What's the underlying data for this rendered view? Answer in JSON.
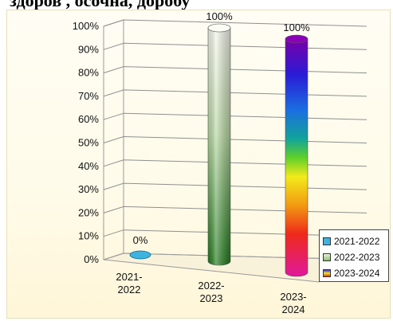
{
  "header": {
    "title": "здоров  , осочна, доробу"
  },
  "chart_data": {
    "type": "bar",
    "style": "3d-cylinder",
    "categories": [
      "2021-2022",
      "2022-2023",
      "2023-2024"
    ],
    "category_labels": [
      [
        "2021-",
        "2022"
      ],
      [
        "2022-",
        "2023"
      ],
      [
        "2023-",
        "2024"
      ]
    ],
    "values": [
      0,
      100,
      100
    ],
    "data_labels": [
      "0%",
      "100%",
      "100%"
    ],
    "ylim": [
      0,
      100
    ],
    "yticks": [
      "0%",
      "10%",
      "20%",
      "30%",
      "40%",
      "50%",
      "60%",
      "70%",
      "80%",
      "90%",
      "100%"
    ],
    "grid": true,
    "legend_position": "right",
    "legend": [
      "2021-2022",
      "2022-2023",
      "2023-2024"
    ],
    "colors": {
      "series1": "#2aa7d8",
      "series2": "#3f8f2a",
      "series3": "rainbow"
    }
  }
}
